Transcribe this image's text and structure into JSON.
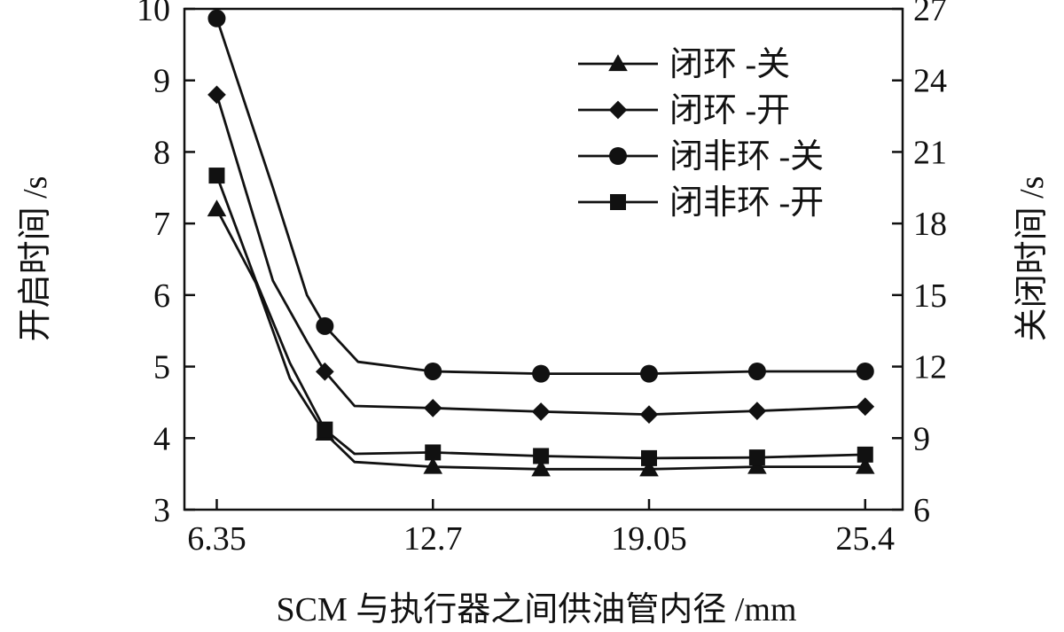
{
  "chart_data": {
    "type": "line",
    "xlabel": "SCM 与执行器之间供油管内径 /mm",
    "ylabel_left": "开启时间 /s",
    "ylabel_right": "关闭时间 /s",
    "x_ticks": [
      "6.35",
      "12.7",
      "19.05",
      "25.4"
    ],
    "x_tick_values": [
      6.35,
      12.7,
      19.05,
      25.4
    ],
    "xlim": [
      5.4,
      26.5
    ],
    "ylim_left": [
      3,
      10
    ],
    "ylim_right": [
      6,
      27
    ],
    "yticks_left": [
      3,
      4,
      5,
      6,
      7,
      8,
      9,
      10
    ],
    "yticks_right": [
      6,
      9,
      12,
      15,
      18,
      21,
      24,
      27
    ],
    "grid": false,
    "legend_position": "top-right",
    "series": [
      {
        "name": "闭环 -关",
        "marker": "triangle",
        "axis": "right",
        "marker_x": [
          6.35,
          9.525,
          12.7,
          15.875,
          19.05,
          22.225,
          25.4
        ],
        "marker_y": [
          18.6,
          9.2,
          7.8,
          7.7,
          7.7,
          7.8,
          7.8
        ],
        "x": [
          6.35,
          7.5,
          8.5,
          9.525,
          10.4,
          12.7,
          15.875,
          19.05,
          22.225,
          25.4
        ],
        "y": [
          18.6,
          15.5,
          11.5,
          9.2,
          8.0,
          7.8,
          7.7,
          7.7,
          7.8,
          7.8
        ]
      },
      {
        "name": "闭环 -开",
        "marker": "diamond",
        "axis": "left",
        "marker_x": [
          6.35,
          9.525,
          12.7,
          15.875,
          19.05,
          22.225,
          25.4
        ],
        "marker_y": [
          8.8,
          4.93,
          4.42,
          4.37,
          4.33,
          4.38,
          4.44
        ],
        "x": [
          6.35,
          8.0,
          9.0,
          9.525,
          10.4,
          12.7,
          15.875,
          19.05,
          22.225,
          25.4
        ],
        "y": [
          8.8,
          6.2,
          5.35,
          4.93,
          4.45,
          4.42,
          4.37,
          4.33,
          4.38,
          4.44
        ]
      },
      {
        "name": "闭非环 -关",
        "marker": "circle",
        "axis": "right",
        "marker_x": [
          6.35,
          9.525,
          12.7,
          15.875,
          19.05,
          22.225,
          25.4
        ],
        "marker_y": [
          26.6,
          13.7,
          11.8,
          11.7,
          11.7,
          11.8,
          11.8
        ],
        "x": [
          6.35,
          8.0,
          9.0,
          9.525,
          10.5,
          12.7,
          15.875,
          19.05,
          22.225,
          25.4
        ],
        "y": [
          26.6,
          19.5,
          15.0,
          13.7,
          12.2,
          11.8,
          11.7,
          11.7,
          11.8,
          11.8
        ]
      },
      {
        "name": "闭非环 -开",
        "marker": "square",
        "axis": "left",
        "marker_x": [
          6.35,
          9.525,
          12.7,
          15.875,
          19.05,
          22.225,
          25.4
        ],
        "marker_y": [
          7.67,
          4.12,
          3.8,
          3.75,
          3.72,
          3.73,
          3.77
        ],
        "x": [
          6.35,
          7.5,
          8.5,
          9.525,
          10.4,
          12.7,
          15.875,
          19.05,
          22.225,
          25.4
        ],
        "y": [
          7.67,
          6.2,
          5.05,
          4.12,
          3.78,
          3.8,
          3.75,
          3.72,
          3.73,
          3.77
        ]
      }
    ]
  }
}
